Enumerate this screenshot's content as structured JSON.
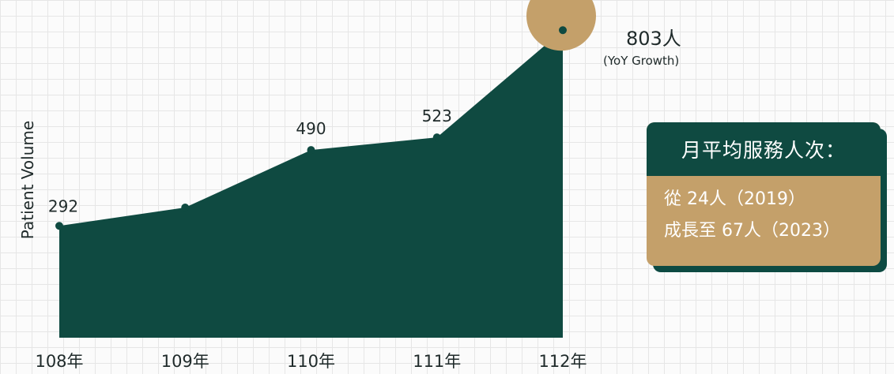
{
  "chart_data": {
    "type": "area",
    "categories": [
      "108年",
      "109年",
      "110年",
      "111年",
      "112年"
    ],
    "values": [
      292,
      340,
      490,
      523,
      803
    ],
    "data_labels": [
      "292",
      "",
      "490",
      "523",
      "803"
    ],
    "xlabel": "",
    "ylabel": "Patient Volume",
    "ylim": [
      0,
      820
    ],
    "grid": false,
    "fill_color": "#0f4a41",
    "highlight_color": "#c4a06a",
    "peak_annotation": {
      "main": "803人",
      "sub": "(YoY Growth)"
    }
  },
  "info_box": {
    "title": "月平均服務人次：",
    "line1": "從 24人（2019）",
    "line2": "成長至 67人（2023）"
  },
  "colors": {
    "background": "#fbfbfb",
    "grid": "#e6e6e6",
    "dark_green": "#0f4a41",
    "gold": "#c4a06a"
  }
}
